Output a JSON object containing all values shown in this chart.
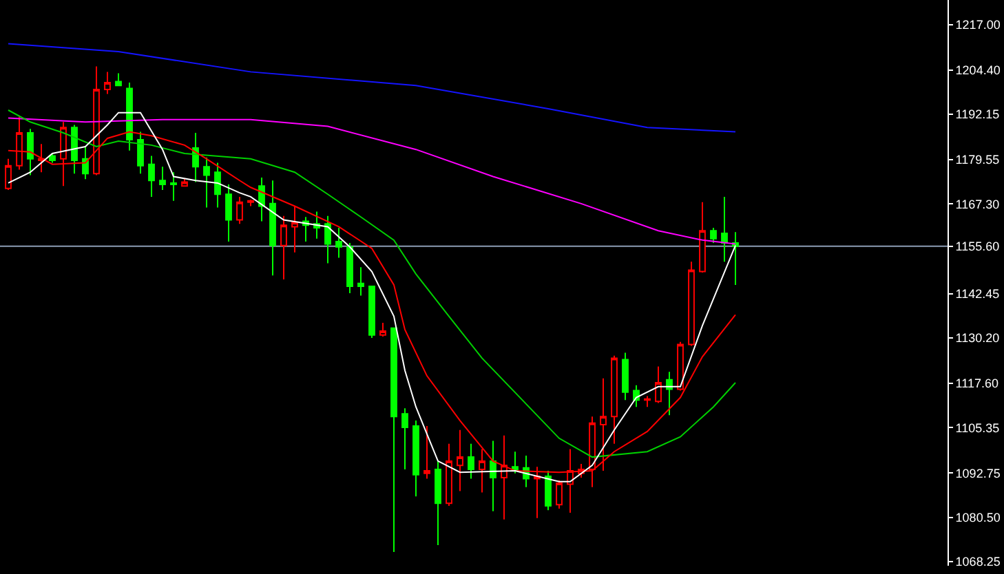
{
  "chart_data": {
    "type": "candlestick",
    "categories": [
      null,
      null,
      null,
      null,
      null,
      null,
      null,
      null,
      null,
      null,
      null,
      null,
      null,
      null,
      null,
      null,
      null,
      null,
      null,
      null,
      null,
      null,
      null,
      null,
      null,
      null,
      null,
      null,
      null,
      null,
      null,
      null,
      null,
      null,
      null,
      null,
      null,
      null,
      null,
      null,
      null,
      null,
      null,
      null,
      null,
      null,
      null,
      null,
      null,
      null,
      null,
      null,
      null,
      null,
      null,
      null,
      null,
      null,
      null,
      null,
      null,
      null,
      null,
      null,
      null,
      null,
      null
    ],
    "ohlc": [
      [
        1171.6,
        1179.8,
        1171.2,
        1177.9
      ],
      [
        1177.9,
        1191.5,
        1176.8,
        1187.0
      ],
      [
        1187.0,
        1188.1,
        1175.3,
        1179.8
      ],
      [
        1179.4,
        1183.9,
        1176.1,
        1179.8
      ],
      [
        1180.6,
        1181.3,
        1178.7,
        1179.4
      ],
      [
        1179.8,
        1190.0,
        1172.3,
        1188.5
      ],
      [
        1188.5,
        1189.2,
        1175.7,
        1179.4
      ],
      [
        1179.8,
        1183.2,
        1174.2,
        1175.7
      ],
      [
        1175.7,
        1205.4,
        1175.3,
        1199.0
      ],
      [
        1199.0,
        1203.9,
        1197.8,
        1200.9
      ],
      [
        1201.2,
        1203.5,
        1200.1,
        1200.1
      ],
      [
        1199.3,
        1200.9,
        1182.1,
        1185.1
      ],
      [
        1185.1,
        1187.3,
        1175.7,
        1177.9
      ],
      [
        1178.3,
        1180.6,
        1169.3,
        1173.8
      ],
      [
        1173.8,
        1177.6,
        1171.2,
        1172.7
      ],
      [
        1173.1,
        1176.1,
        1168.2,
        1172.7
      ],
      [
        1172.3,
        1174.2,
        1172.3,
        1173.4
      ],
      [
        1182.8,
        1187.0,
        1173.4,
        1177.6
      ],
      [
        1177.6,
        1180.2,
        1166.3,
        1175.3
      ],
      [
        1176.1,
        1178.7,
        1166.3,
        1170.0
      ],
      [
        1170.0,
        1172.7,
        1156.9,
        1162.9
      ],
      [
        1162.9,
        1169.3,
        1161.8,
        1167.8
      ],
      [
        1167.8,
        1168.5,
        1166.7,
        1168.2
      ],
      [
        1172.3,
        1174.6,
        1162.5,
        1166.7
      ],
      [
        1167.4,
        1173.8,
        1147.5,
        1155.8
      ],
      [
        1155.8,
        1164.0,
        1146.4,
        1161.4
      ],
      [
        1161.0,
        1166.7,
        1153.9,
        1162.2
      ],
      [
        1162.5,
        1163.7,
        1156.9,
        1161.4
      ],
      [
        1161.8,
        1165.2,
        1157.7,
        1160.7
      ],
      [
        1161.8,
        1164.0,
        1150.9,
        1156.2
      ],
      [
        1156.9,
        1160.7,
        1152.4,
        1155.4
      ],
      [
        1155.4,
        1156.5,
        1142.6,
        1144.5
      ],
      [
        1145.3,
        1149.8,
        1141.9,
        1144.5
      ],
      [
        1144.5,
        1144.5,
        1130.2,
        1131.0
      ],
      [
        1131.0,
        1134.4,
        1130.6,
        1132.1
      ],
      [
        1132.9,
        1132.9,
        1070.9,
        1108.4
      ],
      [
        1109.2,
        1110.7,
        1093.8,
        1105.4
      ],
      [
        1105.8,
        1107.3,
        1086.3,
        1092.3
      ],
      [
        1092.7,
        1105.8,
        1091.2,
        1093.4
      ],
      [
        1093.8,
        1096.1,
        1072.8,
        1084.4
      ],
      [
        1084.4,
        1100.9,
        1083.7,
        1096.1
      ],
      [
        1094.9,
        1104.7,
        1087.8,
        1097.2
      ],
      [
        1097.2,
        1100.9,
        1091.2,
        1093.8
      ],
      [
        1093.8,
        1099.4,
        1087.4,
        1096.1
      ],
      [
        1096.1,
        1101.7,
        1082.2,
        1091.5
      ],
      [
        1091.5,
        1103.2,
        1079.9,
        1094.9
      ],
      [
        1094.5,
        1098.7,
        1092.7,
        1093.4
      ],
      [
        1094.2,
        1097.6,
        1088.9,
        1091.2
      ],
      [
        1091.2,
        1094.5,
        1080.3,
        1091.9
      ],
      [
        1091.9,
        1093.4,
        1082.5,
        1083.7
      ],
      [
        1084.0,
        1090.8,
        1082.9,
        1090.0
      ],
      [
        1089.7,
        1099.4,
        1081.8,
        1093.4
      ],
      [
        1092.7,
        1095.3,
        1091.5,
        1093.8
      ],
      [
        1093.8,
        1108.4,
        1088.9,
        1106.6
      ],
      [
        1106.2,
        1119.0,
        1093.4,
        1108.4
      ],
      [
        1108.4,
        1125.3,
        1100.9,
        1124.6
      ],
      [
        1124.2,
        1126.1,
        1113.0,
        1115.2
      ],
      [
        1115.6,
        1117.1,
        1111.1,
        1113.0
      ],
      [
        1113.0,
        1114.1,
        1111.1,
        1113.3
      ],
      [
        1112.6,
        1122.3,
        1112.2,
        1117.8
      ],
      [
        1118.6,
        1120.8,
        1108.8,
        1116.0
      ],
      [
        1116.0,
        1129.1,
        1115.6,
        1128.4
      ],
      [
        1128.4,
        1151.3,
        1128.0,
        1149.0
      ],
      [
        1148.6,
        1167.8,
        1148.3,
        1159.9
      ],
      [
        1159.9,
        1160.7,
        1156.5,
        1157.7
      ],
      [
        1159.2,
        1169.3,
        1151.3,
        1156.5
      ],
      [
        1156.5,
        1159.5,
        1144.9,
        1155.6
      ]
    ],
    "colors": [
      "#ff0000",
      "#ff0000",
      "#00ff00",
      "#ff0000",
      "#00ff00",
      "#ff0000",
      "#00ff00",
      "#00ff00",
      "#ff0000",
      "#ff0000",
      "#00ff00",
      "#00ff00",
      "#00ff00",
      "#00ff00",
      "#00ff00",
      "#00ff00",
      "#ff0000",
      "#00ff00",
      "#00ff00",
      "#00ff00",
      "#00ff00",
      "#ff0000",
      "#ff0000",
      "#00ff00",
      "#00ff00",
      "#ff0000",
      "#ff0000",
      "#00ff00",
      "#00ff00",
      "#00ff00",
      "#00ff00",
      "#00ff00",
      "#00ff00",
      "#00ff00",
      "#ff0000",
      "#00ff00",
      "#00ff00",
      "#00ff00",
      "#ff0000",
      "#00ff00",
      "#ff0000",
      "#ff0000",
      "#00ff00",
      "#ff0000",
      "#00ff00",
      "#ff0000",
      "#00ff00",
      "#00ff00",
      "#ff0000",
      "#00ff00",
      "#ff0000",
      "#ff0000",
      "#ff0000",
      "#ff0000",
      "#ff0000",
      "#ff0000",
      "#00ff00",
      "#00ff00",
      "#ff0000",
      "#ff0000",
      "#00ff00",
      "#ff0000",
      "#ff0000",
      "#ff0000",
      "#00ff00",
      "#00ff00",
      "#00ff00"
    ],
    "series": [
      {
        "type": "line",
        "color": "#1414ff",
        "values": [
          1211.7,
          null,
          null,
          null,
          null,
          null,
          null,
          null,
          null,
          null,
          1209.5,
          null,
          null,
          null,
          null,
          null,
          null,
          null,
          null,
          null,
          null,
          null,
          1203.9,
          null,
          null,
          null,
          null,
          null,
          null,
          null,
          null,
          null,
          null,
          null,
          null,
          null,
          null,
          1200.1,
          null,
          null,
          null,
          null,
          null,
          null,
          null,
          null,
          null,
          null,
          null,
          1193.7,
          null,
          null,
          null,
          null,
          null,
          null,
          null,
          null,
          1188.5,
          null,
          null,
          null,
          null,
          null,
          null,
          null,
          1187.3
        ]
      },
      {
        "type": "line",
        "color": "#ff00ff",
        "values": [
          1191.1,
          null,
          null,
          null,
          null,
          null,
          null,
          1190.0,
          null,
          null,
          null,
          null,
          null,
          null,
          1190.7,
          null,
          null,
          null,
          null,
          null,
          null,
          null,
          1190.7,
          null,
          null,
          null,
          null,
          null,
          null,
          1188.8,
          null,
          null,
          null,
          null,
          null,
          null,
          null,
          1182.4,
          null,
          null,
          null,
          null,
          null,
          null,
          1174.9,
          null,
          null,
          null,
          null,
          null,
          null,
          null,
          1167.4,
          null,
          null,
          null,
          null,
          null,
          null,
          1159.9,
          null,
          null,
          null,
          1157.3,
          null,
          null,
          1156.2
        ]
      },
      {
        "type": "line",
        "color": "#00d000",
        "values": [
          1193.3,
          null,
          1190.0,
          null,
          null,
          1187.0,
          null,
          null,
          1183.2,
          null,
          1184.7,
          null,
          null,
          1183.6,
          null,
          null,
          1181.3,
          null,
          null,
          null,
          null,
          null,
          1179.8,
          null,
          null,
          null,
          1176.1,
          null,
          null,
          1170.0,
          null,
          null,
          1163.7,
          null,
          null,
          1157.3,
          null,
          1147.9,
          null,
          null,
          1136.2,
          null,
          null,
          1124.6,
          null,
          null,
          null,
          null,
          null,
          null,
          1102.4,
          null,
          null,
          1097.2,
          null,
          null,
          null,
          null,
          1098.7,
          null,
          null,
          1102.8,
          null,
          null,
          1111.1,
          null,
          1117.8
        ]
      },
      {
        "type": "line",
        "color": "#ff0000",
        "values": [
          1182.1,
          null,
          1181.7,
          null,
          1178.3,
          null,
          null,
          1178.7,
          null,
          1185.5,
          null,
          1187.3,
          null,
          1186.2,
          null,
          null,
          1183.6,
          null,
          1179.8,
          null,
          null,
          1173.8,
          1171.9,
          null,
          null,
          null,
          1166.7,
          null,
          null,
          null,
          1161.0,
          null,
          null,
          1155.0,
          null,
          1144.9,
          1132.5,
          null,
          1119.7,
          null,
          null,
          1107.3,
          null,
          null,
          1096.1,
          null,
          1093.4,
          null,
          null,
          null,
          1093.0,
          null,
          null,
          1093.4,
          null,
          1098.7,
          null,
          null,
          1104.3,
          null,
          null,
          1113.7,
          null,
          1125.0,
          null,
          null,
          1136.6
        ]
      },
      {
        "type": "line",
        "color": "#ffffff",
        "values": [
          1173.1,
          null,
          1176.1,
          null,
          1181.3,
          null,
          null,
          1183.2,
          1186.2,
          1189.2,
          1192.6,
          null,
          1192.6,
          null,
          1182.4,
          1174.9,
          null,
          1173.8,
          null,
          1173.1,
          null,
          1170.4,
          1169.3,
          null,
          null,
          1162.9,
          null,
          null,
          null,
          1161.0,
          null,
          1155.4,
          null,
          1148.6,
          null,
          1136.2,
          1121.2,
          1111.1,
          1103.6,
          1096.1,
          null,
          1093.0,
          null,
          null,
          null,
          null,
          1093.4,
          null,
          null,
          null,
          1090.4,
          1090.4,
          null,
          1094.9,
          null,
          1104.7,
          null,
          1113.7,
          null,
          1116.7,
          null,
          1116.7,
          null,
          1133.6,
          null,
          null,
          1155.8
        ]
      }
    ],
    "ref_lines": [
      {
        "axis": "y",
        "value": 1155.6,
        "color": "#8c9cb4"
      }
    ],
    "ylim": [
      1067.1,
      1223.8
    ],
    "yticks": [
      {
        "value": 1217,
        "label": "1217.00"
      },
      {
        "value": 1204.4,
        "label": "1204.40"
      },
      {
        "value": 1192.15,
        "label": "1192.15"
      },
      {
        "value": 1179.55,
        "label": "1179.55"
      },
      {
        "value": 1167.3,
        "label": "1167.30"
      },
      {
        "value": 1155.6,
        "label": "1155.60"
      },
      {
        "value": 1142.45,
        "label": "1142.45"
      },
      {
        "value": 1130.2,
        "label": "1130.20"
      },
      {
        "value": 1117.6,
        "label": "1117.60"
      },
      {
        "value": 1105.35,
        "label": "1105.35"
      },
      {
        "value": 1092.75,
        "label": "1092.75"
      },
      {
        "value": 1080.5,
        "label": "1080.50"
      },
      {
        "value": 1068.25,
        "label": "1068.25"
      }
    ],
    "tick_labels": "y"
  }
}
